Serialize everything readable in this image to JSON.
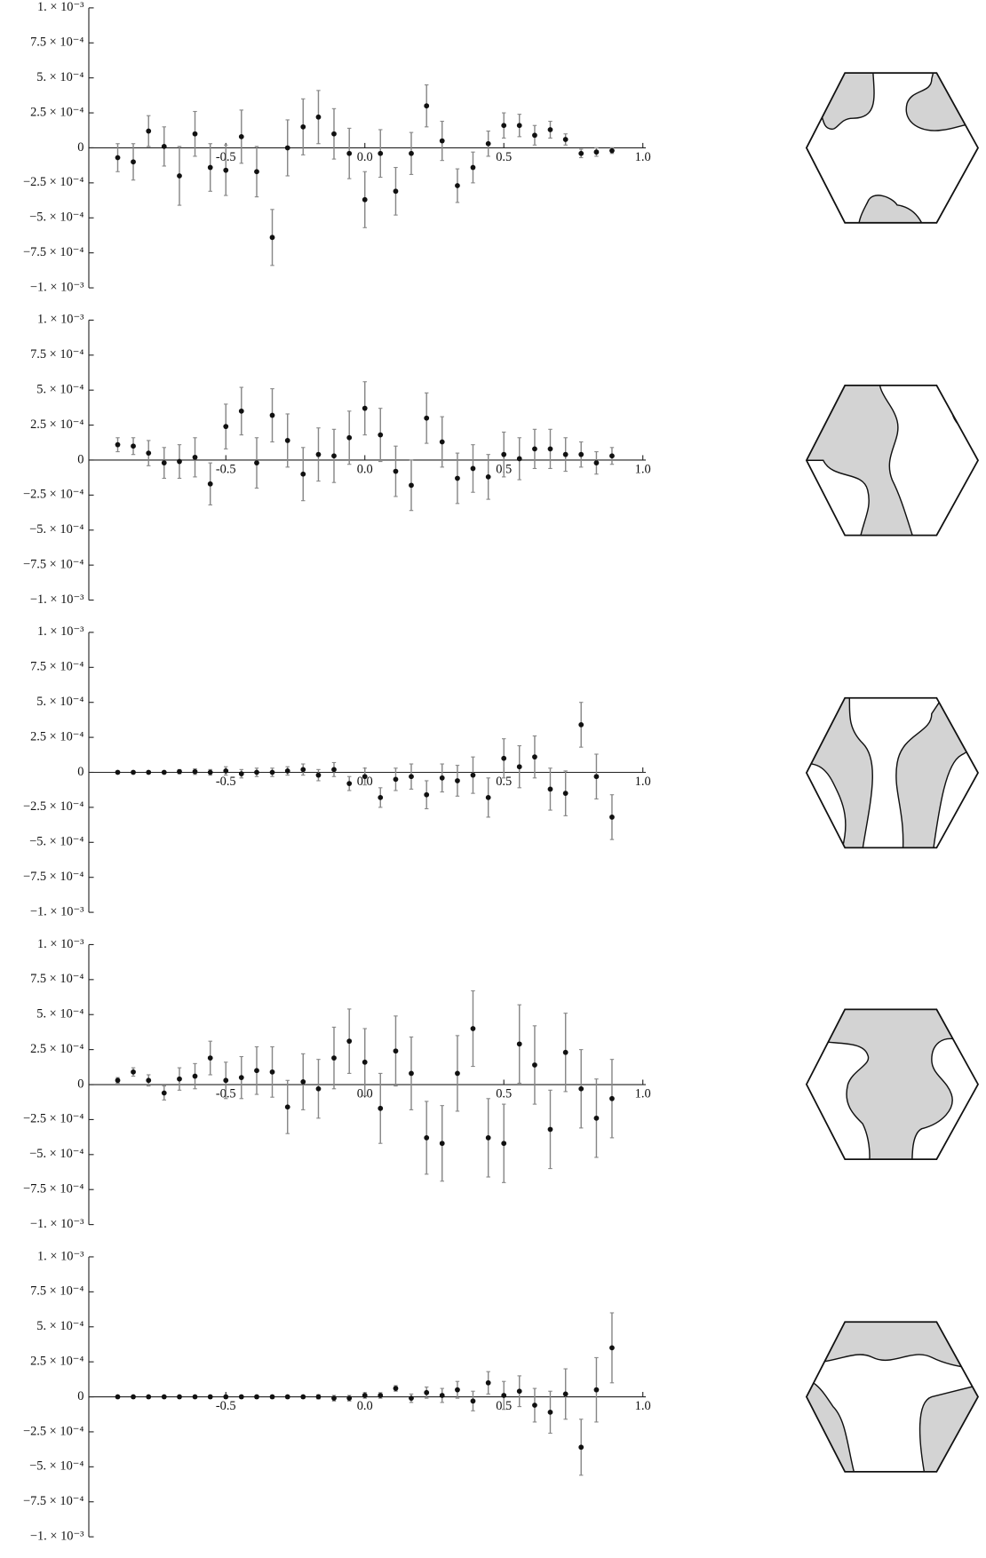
{
  "chart_data": [
    {
      "type": "scatter",
      "color": "#111111",
      "error_color": "#888888",
      "x": [
        -0.889,
        -0.833,
        -0.778,
        -0.722,
        -0.667,
        -0.611,
        -0.556,
        -0.5,
        -0.444,
        -0.389,
        -0.333,
        -0.278,
        -0.222,
        -0.167,
        -0.111,
        -0.056,
        0,
        0.056,
        0.111,
        0.167,
        0.222,
        0.278,
        0.333,
        0.389,
        0.444,
        0.5,
        0.556,
        0.611,
        0.667,
        0.722,
        0.778,
        0.833,
        0.889
      ],
      "values": [
        -7e-05,
        -0.0001,
        0.00012,
        1e-05,
        -0.0002,
        0.0001,
        -0.00014,
        -0.00016,
        8e-05,
        -0.00017,
        -0.00064,
        0.0,
        0.00015,
        0.00022,
        0.0001,
        -4e-05,
        -0.00037,
        -4e-05,
        -0.00031,
        -4e-05,
        0.0003,
        5e-05,
        -0.00027,
        -0.00014,
        3e-05,
        0.00016,
        0.00016,
        9e-05,
        0.00013,
        6e-05,
        -4e-05,
        -3e-05,
        -2e-05
      ],
      "errors": [
        0.0001,
        0.00013,
        0.00011,
        0.00014,
        0.00021,
        0.00016,
        0.00017,
        0.00018,
        0.00019,
        0.00018,
        0.0002,
        0.0002,
        0.0002,
        0.00019,
        0.00018,
        0.00018,
        0.0002,
        0.00017,
        0.00017,
        0.00015,
        0.00015,
        0.00014,
        0.00012,
        0.00011,
        9e-05,
        9e-05,
        8e-05,
        7e-05,
        6e-05,
        4e-05,
        3e-05,
        3e-05,
        2e-05
      ],
      "xlim": [
        -1,
        1
      ],
      "ylim": [
        -0.001,
        0.001
      ],
      "xticks": [
        -0.5,
        {
          "value": 0,
          "label": "0.0"
        },
        0.5,
        {
          "value": 1,
          "label": "1.0"
        }
      ],
      "yticks": [
        {
          "value": 0.001,
          "label": "1. × 10⁻³"
        },
        {
          "value": 0.00075,
          "label": "7.5 × 10⁻⁴"
        },
        {
          "value": 0.0005,
          "label": "5. × 10⁻⁴"
        },
        {
          "value": 0.00025,
          "label": "2.5 × 10⁻⁴"
        },
        0,
        {
          "value": -0.00025,
          "label": "−2.5 × 10⁻⁴"
        },
        {
          "value": -0.0005,
          "label": "−5. × 10⁻⁴"
        },
        {
          "value": -0.00075,
          "label": "−7.5 × 10⁻⁴"
        },
        {
          "value": -0.001,
          "label": "−1. × 10⁻³"
        }
      ]
    },
    {
      "type": "scatter",
      "color": "#111111",
      "error_color": "#888888",
      "x": [
        -0.889,
        -0.833,
        -0.778,
        -0.722,
        -0.667,
        -0.611,
        -0.556,
        -0.5,
        -0.444,
        -0.389,
        -0.333,
        -0.278,
        -0.222,
        -0.167,
        -0.111,
        -0.056,
        0,
        0.056,
        0.111,
        0.167,
        0.222,
        0.278,
        0.333,
        0.389,
        0.444,
        0.5,
        0.556,
        0.611,
        0.667,
        0.722,
        0.778,
        0.833,
        0.889
      ],
      "values": [
        0.00011,
        0.0001,
        5e-05,
        -2e-05,
        -1e-05,
        2e-05,
        -0.00017,
        0.00024,
        0.00035,
        -2e-05,
        0.00032,
        0.00014,
        -0.0001,
        4e-05,
        3e-05,
        0.00016,
        0.00037,
        0.00018,
        -8e-05,
        -0.00018,
        0.0003,
        0.00013,
        -0.00013,
        -6e-05,
        -0.00012,
        4e-05,
        1e-05,
        8e-05,
        8e-05,
        4e-05,
        4e-05,
        -2e-05,
        3e-05
      ],
      "errors": [
        5e-05,
        6e-05,
        9e-05,
        0.00011,
        0.00012,
        0.00014,
        0.00015,
        0.00016,
        0.00017,
        0.00018,
        0.00019,
        0.00019,
        0.00019,
        0.00019,
        0.00019,
        0.00019,
        0.00019,
        0.00019,
        0.00018,
        0.00018,
        0.00018,
        0.00018,
        0.00018,
        0.00017,
        0.00016,
        0.00016,
        0.00015,
        0.00014,
        0.00014,
        0.00012,
        9e-05,
        8e-05,
        6e-05
      ],
      "xlim": [
        -1,
        1
      ],
      "ylim": [
        -0.001,
        0.001
      ],
      "xticks": [
        -0.5,
        {
          "value": 0,
          "label": "0.0"
        },
        0.5,
        {
          "value": 1,
          "label": "1.0"
        }
      ],
      "yticks": [
        {
          "value": 0.001,
          "label": "1. × 10⁻³"
        },
        {
          "value": 0.00075,
          "label": "7.5 × 10⁻⁴"
        },
        {
          "value": 0.0005,
          "label": "5. × 10⁻⁴"
        },
        {
          "value": 0.00025,
          "label": "2.5 × 10⁻⁴"
        },
        0,
        {
          "value": -0.00025,
          "label": "−2.5 × 10⁻⁴"
        },
        {
          "value": -0.0005,
          "label": "−5. × 10⁻⁴"
        },
        {
          "value": -0.00075,
          "label": "−7.5 × 10⁻⁴"
        },
        {
          "value": -0.001,
          "label": "−1. × 10⁻³"
        }
      ]
    },
    {
      "type": "scatter",
      "color": "#111111",
      "error_color": "#888888",
      "x": [
        -0.889,
        -0.833,
        -0.778,
        -0.722,
        -0.667,
        -0.611,
        -0.556,
        -0.5,
        -0.444,
        -0.389,
        -0.333,
        -0.278,
        -0.222,
        -0.167,
        -0.111,
        -0.056,
        0,
        0.056,
        0.111,
        0.167,
        0.222,
        0.278,
        0.333,
        0.389,
        0.444,
        0.5,
        0.556,
        0.611,
        0.667,
        0.722,
        0.778,
        0.833,
        0.889
      ],
      "values": [
        0,
        0,
        0,
        0,
        5e-06,
        5e-06,
        0,
        1e-05,
        -1e-05,
        0,
        0,
        1e-05,
        2e-05,
        -2e-05,
        2e-05,
        -8e-05,
        -3e-05,
        -0.00018,
        -5e-05,
        -3e-05,
        -0.00016,
        -4e-05,
        -6e-05,
        -2e-05,
        -0.00018,
        0.0001,
        4e-05,
        0.00011,
        -0.00012,
        -0.00015,
        0.00034,
        -3e-05,
        -0.00032
      ],
      "errors": [
        1e-05,
        1e-05,
        1e-05,
        1e-05,
        1.5e-05,
        2e-05,
        2e-05,
        3e-05,
        3e-05,
        3e-05,
        3e-05,
        3e-05,
        4e-05,
        4e-05,
        5e-05,
        5e-05,
        6e-05,
        7e-05,
        8e-05,
        9e-05,
        0.0001,
        0.0001,
        0.00011,
        0.00013,
        0.00014,
        0.00014,
        0.00015,
        0.00015,
        0.00015,
        0.00016,
        0.00016,
        0.00016,
        0.00016
      ],
      "xlim": [
        -1,
        1
      ],
      "ylim": [
        -0.001,
        0.001
      ],
      "xticks": [
        -0.5,
        {
          "value": 0,
          "label": "0.0"
        },
        0.5,
        {
          "value": 1,
          "label": "1.0"
        }
      ],
      "yticks": [
        {
          "value": 0.001,
          "label": "1. × 10⁻³"
        },
        {
          "value": 0.00075,
          "label": "7.5 × 10⁻⁴"
        },
        {
          "value": 0.0005,
          "label": "5. × 10⁻⁴"
        },
        {
          "value": 0.00025,
          "label": "2.5 × 10⁻⁴"
        },
        0,
        {
          "value": -0.00025,
          "label": "−2.5 × 10⁻⁴"
        },
        {
          "value": -0.0005,
          "label": "−5. × 10⁻⁴"
        },
        {
          "value": -0.00075,
          "label": "−7.5 × 10⁻⁴"
        },
        {
          "value": -0.001,
          "label": "−1. × 10⁻³"
        }
      ]
    },
    {
      "type": "scatter",
      "color": "#111111",
      "error_color": "#888888",
      "x": [
        -0.889,
        -0.833,
        -0.778,
        -0.722,
        -0.667,
        -0.611,
        -0.556,
        -0.5,
        -0.444,
        -0.389,
        -0.333,
        -0.278,
        -0.222,
        -0.167,
        -0.111,
        -0.056,
        0,
        0.056,
        0.111,
        0.167,
        0.222,
        0.278,
        0.333,
        0.389,
        0.444,
        0.5,
        0.556,
        0.611,
        0.667,
        0.722,
        0.778,
        0.833,
        0.889
      ],
      "values": [
        3e-05,
        9e-05,
        3e-05,
        -6e-05,
        4e-05,
        6e-05,
        0.00019,
        3e-05,
        5e-05,
        0.0001,
        9e-05,
        -0.00016,
        2e-05,
        -3e-05,
        0.00019,
        0.00031,
        0.00016,
        -0.00017,
        0.00024,
        8e-05,
        -0.00038,
        -0.00042,
        8e-05,
        0.0004,
        -0.00038,
        -0.00042,
        0.00029,
        0.00014,
        -0.00032,
        0.00023,
        -3e-05,
        -0.00024,
        -0.0001
      ],
      "errors": [
        2e-05,
        3e-05,
        4e-05,
        5e-05,
        8e-05,
        9e-05,
        0.00012,
        0.00013,
        0.00015,
        0.00017,
        0.00018,
        0.00019,
        0.0002,
        0.00021,
        0.00022,
        0.00023,
        0.00024,
        0.00025,
        0.00025,
        0.00026,
        0.00026,
        0.00027,
        0.00027,
        0.00027,
        0.00028,
        0.00028,
        0.00028,
        0.00028,
        0.00028,
        0.00028,
        0.00028,
        0.00028,
        0.00028
      ],
      "xlim": [
        -1,
        1
      ],
      "ylim": [
        -0.001,
        0.001
      ],
      "xticks": [
        -0.5,
        {
          "value": 0,
          "label": "0.0"
        },
        0.5,
        {
          "value": 1,
          "label": "1.0"
        }
      ],
      "yticks": [
        {
          "value": 0.001,
          "label": "1. × 10⁻³"
        },
        {
          "value": 0.00075,
          "label": "7.5 × 10⁻⁴"
        },
        {
          "value": 0.0005,
          "label": "5. × 10⁻⁴"
        },
        {
          "value": 0.00025,
          "label": "2.5 × 10⁻⁴"
        },
        0,
        {
          "value": -0.00025,
          "label": "−2.5 × 10⁻⁴"
        },
        {
          "value": -0.0005,
          "label": "−5. × 10⁻⁴"
        },
        {
          "value": -0.00075,
          "label": "−7.5 × 10⁻⁴"
        },
        {
          "value": -0.001,
          "label": "−1. × 10⁻³"
        }
      ]
    },
    {
      "type": "scatter",
      "color": "#111111",
      "error_color": "#888888",
      "x": [
        -0.889,
        -0.833,
        -0.778,
        -0.722,
        -0.667,
        -0.611,
        -0.556,
        -0.5,
        -0.444,
        -0.389,
        -0.333,
        -0.278,
        -0.222,
        -0.167,
        -0.111,
        -0.056,
        0,
        0.056,
        0.111,
        0.167,
        0.222,
        0.278,
        0.333,
        0.389,
        0.444,
        0.5,
        0.556,
        0.611,
        0.667,
        0.722,
        0.778,
        0.833,
        0.889
      ],
      "values": [
        0,
        0,
        0,
        0,
        0,
        0,
        0,
        0,
        0,
        0,
        0,
        0,
        0,
        0,
        -1e-05,
        -1e-05,
        1e-05,
        1e-05,
        6e-05,
        -1e-05,
        3e-05,
        1e-05,
        5e-05,
        -3e-05,
        0.0001,
        1e-05,
        4e-05,
        -6e-05,
        -0.00011,
        2e-05,
        -0.00036,
        5e-05,
        0.00035
      ],
      "errors": [
        5e-06,
        5e-06,
        5e-06,
        5e-06,
        5e-06,
        5e-06,
        1e-05,
        1e-05,
        1e-05,
        1e-05,
        1e-05,
        1e-05,
        1e-05,
        1.5e-05,
        2e-05,
        2e-05,
        2e-05,
        2e-05,
        2e-05,
        3e-05,
        4e-05,
        5e-05,
        6e-05,
        7e-05,
        8e-05,
        0.0001,
        0.00011,
        0.00012,
        0.00015,
        0.00018,
        0.0002,
        0.00023,
        0.00025
      ],
      "xlim": [
        -1,
        1
      ],
      "ylim": [
        -0.001,
        0.001
      ],
      "xticks": [
        -0.5,
        {
          "value": 0,
          "label": "0.0"
        },
        0.5,
        {
          "value": 1,
          "label": "1.0"
        }
      ],
      "yticks": [
        {
          "value": 0.001,
          "label": "1. × 10⁻³"
        },
        {
          "value": 0.00075,
          "label": "7.5 × 10⁻⁴"
        },
        {
          "value": 0.0005,
          "label": "5. × 10⁻⁴"
        },
        {
          "value": 0.00025,
          "label": "2.5 × 10⁻⁴"
        },
        0,
        {
          "value": -0.00025,
          "label": "−2.5 × 10⁻⁴"
        },
        {
          "value": -0.0005,
          "label": "−5. × 10⁻⁴"
        },
        {
          "value": -0.00075,
          "label": "−7.5 × 10⁻⁴"
        },
        {
          "value": -0.001,
          "label": "−1. × 10⁻³"
        }
      ]
    }
  ]
}
